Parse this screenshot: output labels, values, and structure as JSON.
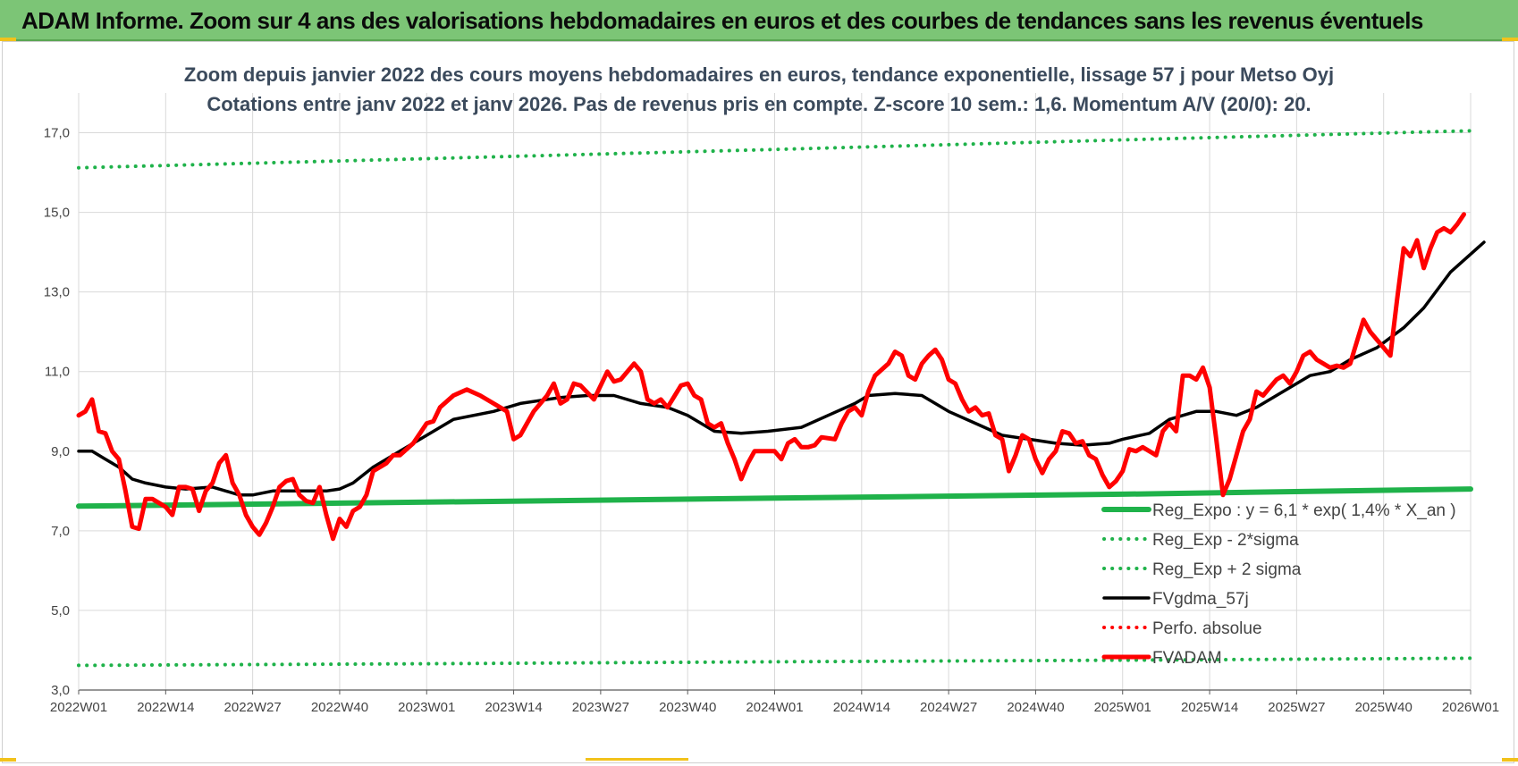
{
  "header": {
    "title": "ADAM Informe. Zoom sur 4 ans des valorisations hebdomadaires en euros et des courbes de tendances sans les revenus éventuels"
  },
  "chart_data": {
    "type": "line",
    "title": "Zoom depuis janvier 2022 des cours moyens hebdomadaires en euros, tendance exponentielle, lissage 57 j pour Metso Oyj",
    "subtitle": "Cotations entre janv 2022 et janv 2026. Pas de revenus pris en compte. Z-score 10 sem.: 1,6. Momentum A/V (20/0): 20.",
    "xlabel": "",
    "ylabel": "",
    "ylim": [
      3,
      18
    ],
    "yticks": [
      "3,0",
      "5,0",
      "7,0",
      "9,0",
      "11,0",
      "13,0",
      "15,0",
      "17,0"
    ],
    "ytick_values": [
      3,
      5,
      7,
      9,
      11,
      13,
      15,
      17
    ],
    "xticks": [
      "2022W01",
      "2022W14",
      "2022W27",
      "2022W40",
      "2023W01",
      "2023W14",
      "2023W27",
      "2023W40",
      "2024W01",
      "2024W14",
      "2024W27",
      "2024W40",
      "2025W01",
      "2025W14",
      "2025W27",
      "2025W40",
      "2026W01"
    ],
    "grid": true,
    "legend_position": "bottom-right",
    "series": [
      {
        "name": "Reg_Expo : y = 6,1 * exp( 1,4% *  X_an )",
        "color": "#1fb24a",
        "style": "solid-thick",
        "keypoints": [
          [
            0,
            7.62
          ],
          [
            52,
            7.72
          ],
          [
            104,
            7.82
          ],
          [
            156,
            7.92
          ],
          [
            208,
            8.05
          ]
        ]
      },
      {
        "name": "Reg_Exp - 2*sigma",
        "color": "#1fb24a",
        "style": "dotted",
        "keypoints": [
          [
            0,
            3.62
          ],
          [
            52,
            3.66
          ],
          [
            104,
            3.71
          ],
          [
            156,
            3.75
          ],
          [
            208,
            3.8
          ]
        ]
      },
      {
        "name": "Reg_Exp + 2 sigma",
        "color": "#1fb24a",
        "style": "dotted",
        "keypoints": [
          [
            0,
            16.12
          ],
          [
            52,
            16.35
          ],
          [
            104,
            16.58
          ],
          [
            156,
            16.82
          ],
          [
            208,
            17.05
          ]
        ]
      },
      {
        "name": "FVgdma_57j",
        "color": "#000000",
        "style": "solid",
        "keypoints": [
          [
            0,
            9.0
          ],
          [
            2,
            9.0
          ],
          [
            4,
            8.8
          ],
          [
            6,
            8.6
          ],
          [
            8,
            8.3
          ],
          [
            10,
            8.2
          ],
          [
            13,
            8.1
          ],
          [
            16,
            8.05
          ],
          [
            20,
            8.1
          ],
          [
            24,
            7.9
          ],
          [
            26,
            7.9
          ],
          [
            29,
            8.0
          ],
          [
            33,
            8.0
          ],
          [
            37,
            8.0
          ],
          [
            39,
            8.05
          ],
          [
            41,
            8.2
          ],
          [
            44,
            8.6
          ],
          [
            48,
            9.0
          ],
          [
            52,
            9.4
          ],
          [
            56,
            9.8
          ],
          [
            62,
            10.0
          ],
          [
            66,
            10.2
          ],
          [
            72,
            10.35
          ],
          [
            76,
            10.4
          ],
          [
            80,
            10.4
          ],
          [
            84,
            10.2
          ],
          [
            88,
            10.1
          ],
          [
            91,
            9.9
          ],
          [
            95,
            9.5
          ],
          [
            99,
            9.45
          ],
          [
            103,
            9.5
          ],
          [
            108,
            9.6
          ],
          [
            112,
            9.9
          ],
          [
            116,
            10.2
          ],
          [
            118,
            10.4
          ],
          [
            122,
            10.45
          ],
          [
            126,
            10.4
          ],
          [
            130,
            10.0
          ],
          [
            134,
            9.7
          ],
          [
            138,
            9.4
          ],
          [
            142,
            9.3
          ],
          [
            146,
            9.2
          ],
          [
            150,
            9.15
          ],
          [
            154,
            9.2
          ],
          [
            156,
            9.3
          ],
          [
            160,
            9.45
          ],
          [
            163,
            9.8
          ],
          [
            167,
            10.0
          ],
          [
            170,
            10.0
          ],
          [
            173,
            9.9
          ],
          [
            176,
            10.1
          ],
          [
            180,
            10.5
          ],
          [
            184,
            10.9
          ],
          [
            187,
            11.0
          ],
          [
            190,
            11.3
          ],
          [
            194,
            11.6
          ],
          [
            198,
            12.1
          ],
          [
            201,
            12.6
          ],
          [
            205,
            13.5
          ],
          [
            210,
            14.25
          ]
        ]
      },
      {
        "name": "Perfo. absolue",
        "color": "#ff0000",
        "style": "dotted",
        "keypoints": []
      },
      {
        "name": "FVADAM",
        "color": "#ff0000",
        "style": "solid-thick",
        "keypoints": [
          [
            0,
            9.9
          ],
          [
            1,
            10.0
          ],
          [
            2,
            10.3
          ],
          [
            3,
            9.5
          ],
          [
            4,
            9.45
          ],
          [
            5,
            9.0
          ],
          [
            6,
            8.8
          ],
          [
            7,
            8.0
          ],
          [
            8,
            7.1
          ],
          [
            9,
            7.05
          ],
          [
            10,
            7.8
          ],
          [
            11,
            7.8
          ],
          [
            12,
            7.7
          ],
          [
            13,
            7.6
          ],
          [
            14,
            7.4
          ],
          [
            15,
            8.1
          ],
          [
            16,
            8.1
          ],
          [
            17,
            8.05
          ],
          [
            18,
            7.5
          ],
          [
            19,
            8.0
          ],
          [
            20,
            8.2
          ],
          [
            21,
            8.7
          ],
          [
            22,
            8.9
          ],
          [
            23,
            8.2
          ],
          [
            24,
            7.9
          ],
          [
            25,
            7.4
          ],
          [
            26,
            7.1
          ],
          [
            27,
            6.9
          ],
          [
            28,
            7.2
          ],
          [
            29,
            7.6
          ],
          [
            30,
            8.1
          ],
          [
            31,
            8.25
          ],
          [
            32,
            8.3
          ],
          [
            33,
            7.9
          ],
          [
            34,
            7.75
          ],
          [
            35,
            7.7
          ],
          [
            36,
            8.1
          ],
          [
            37,
            7.4
          ],
          [
            38,
            6.8
          ],
          [
            39,
            7.3
          ],
          [
            40,
            7.1
          ],
          [
            41,
            7.5
          ],
          [
            42,
            7.6
          ],
          [
            43,
            7.9
          ],
          [
            44,
            8.5
          ],
          [
            46,
            8.7
          ],
          [
            47,
            8.9
          ],
          [
            48,
            8.9
          ],
          [
            50,
            9.2
          ],
          [
            52,
            9.7
          ],
          [
            53,
            9.75
          ],
          [
            54,
            10.1
          ],
          [
            56,
            10.4
          ],
          [
            58,
            10.55
          ],
          [
            60,
            10.4
          ],
          [
            62,
            10.2
          ],
          [
            64,
            10.0
          ],
          [
            65,
            9.3
          ],
          [
            66,
            9.4
          ],
          [
            67,
            9.7
          ],
          [
            68,
            10.0
          ],
          [
            70,
            10.4
          ],
          [
            71,
            10.7
          ],
          [
            72,
            10.2
          ],
          [
            73,
            10.3
          ],
          [
            74,
            10.7
          ],
          [
            75,
            10.65
          ],
          [
            77,
            10.3
          ],
          [
            79,
            11.0
          ],
          [
            80,
            10.75
          ],
          [
            81,
            10.8
          ],
          [
            83,
            11.2
          ],
          [
            84,
            11.0
          ],
          [
            85,
            10.3
          ],
          [
            86,
            10.2
          ],
          [
            87,
            10.3
          ],
          [
            88,
            10.1
          ],
          [
            90,
            10.65
          ],
          [
            91,
            10.7
          ],
          [
            92,
            10.4
          ],
          [
            93,
            10.3
          ],
          [
            94,
            9.7
          ],
          [
            95,
            9.6
          ],
          [
            96,
            9.7
          ],
          [
            97,
            9.2
          ],
          [
            98,
            8.8
          ],
          [
            99,
            8.3
          ],
          [
            100,
            8.7
          ],
          [
            101,
            9.0
          ],
          [
            103,
            9.0
          ],
          [
            104,
            9.0
          ],
          [
            105,
            8.8
          ],
          [
            106,
            9.2
          ],
          [
            107,
            9.3
          ],
          [
            108,
            9.1
          ],
          [
            109,
            9.1
          ],
          [
            110,
            9.15
          ],
          [
            111,
            9.35
          ],
          [
            113,
            9.3
          ],
          [
            114,
            9.7
          ],
          [
            115,
            10.0
          ],
          [
            116,
            10.1
          ],
          [
            117,
            9.9
          ],
          [
            118,
            10.5
          ],
          [
            119,
            10.9
          ],
          [
            121,
            11.2
          ],
          [
            122,
            11.5
          ],
          [
            123,
            11.4
          ],
          [
            124,
            10.9
          ],
          [
            125,
            10.8
          ],
          [
            126,
            11.2
          ],
          [
            127,
            11.4
          ],
          [
            128,
            11.55
          ],
          [
            129,
            11.3
          ],
          [
            130,
            10.8
          ],
          [
            131,
            10.7
          ],
          [
            132,
            10.3
          ],
          [
            133,
            10.0
          ],
          [
            134,
            10.1
          ],
          [
            135,
            9.9
          ],
          [
            136,
            9.95
          ],
          [
            137,
            9.4
          ],
          [
            138,
            9.3
          ],
          [
            139,
            8.5
          ],
          [
            140,
            8.9
          ],
          [
            141,
            9.4
          ],
          [
            142,
            9.3
          ],
          [
            143,
            8.8
          ],
          [
            144,
            8.45
          ],
          [
            145,
            8.8
          ],
          [
            146,
            9.0
          ],
          [
            147,
            9.5
          ],
          [
            148,
            9.45
          ],
          [
            149,
            9.2
          ],
          [
            150,
            9.25
          ],
          [
            151,
            8.9
          ],
          [
            152,
            8.8
          ],
          [
            153,
            8.4
          ],
          [
            154,
            8.1
          ],
          [
            155,
            8.25
          ],
          [
            156,
            8.5
          ],
          [
            157,
            9.05
          ],
          [
            158,
            9.0
          ],
          [
            159,
            9.1
          ],
          [
            160,
            9.0
          ],
          [
            161,
            8.9
          ],
          [
            162,
            9.5
          ],
          [
            163,
            9.7
          ],
          [
            164,
            9.5
          ],
          [
            165,
            10.9
          ],
          [
            166,
            10.9
          ],
          [
            167,
            10.8
          ],
          [
            168,
            11.1
          ],
          [
            169,
            10.6
          ],
          [
            170,
            9.3
          ],
          [
            171,
            7.9
          ],
          [
            172,
            8.3
          ],
          [
            173,
            8.9
          ],
          [
            174,
            9.5
          ],
          [
            175,
            9.8
          ],
          [
            176,
            10.5
          ],
          [
            177,
            10.4
          ],
          [
            178,
            10.6
          ],
          [
            179,
            10.8
          ],
          [
            180,
            10.9
          ],
          [
            181,
            10.7
          ],
          [
            182,
            11.0
          ],
          [
            183,
            11.4
          ],
          [
            184,
            11.5
          ],
          [
            185,
            11.3
          ],
          [
            186,
            11.2
          ],
          [
            187,
            11.1
          ],
          [
            188,
            11.15
          ],
          [
            189,
            11.1
          ],
          [
            190,
            11.2
          ],
          [
            192,
            12.3
          ],
          [
            193,
            12.0
          ],
          [
            194,
            11.8
          ],
          [
            195,
            11.6
          ],
          [
            196,
            11.4
          ],
          [
            197,
            12.8
          ],
          [
            198,
            14.1
          ],
          [
            199,
            13.9
          ],
          [
            200,
            14.3
          ],
          [
            201,
            13.6
          ],
          [
            202,
            14.1
          ],
          [
            203,
            14.5
          ],
          [
            204,
            14.6
          ],
          [
            205,
            14.5
          ],
          [
            206,
            14.7
          ],
          [
            207,
            14.95
          ]
        ]
      }
    ]
  }
}
